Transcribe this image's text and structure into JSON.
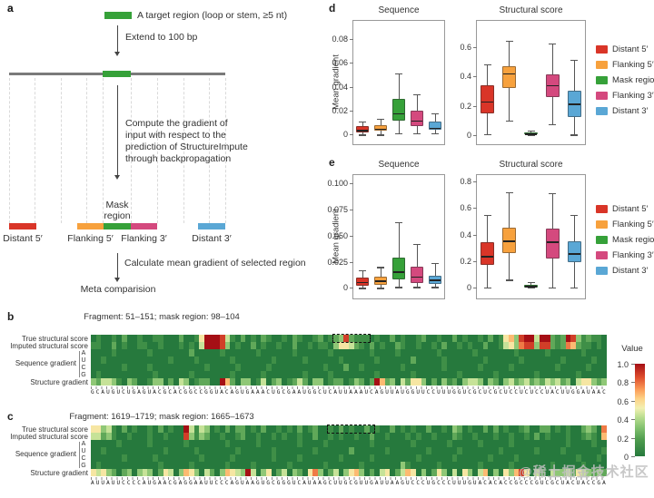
{
  "colors": {
    "distant5": "#d93528",
    "flanking5": "#f7a13d",
    "mask": "#36a139",
    "flanking3": "#d4497e",
    "distant3": "#5aa7d5"
  },
  "heat_colormap": {
    "stops": [
      [
        0,
        "#26793d"
      ],
      [
        0.18,
        "#4f9c4e"
      ],
      [
        0.3,
        "#7fbf6d"
      ],
      [
        0.42,
        "#b8dd8f"
      ],
      [
        0.52,
        "#f2f0b2"
      ],
      [
        0.62,
        "#fdd387"
      ],
      [
        0.72,
        "#fb9d59"
      ],
      [
        0.85,
        "#e04f2e"
      ],
      [
        1,
        "#a50f15"
      ]
    ]
  },
  "value_scale": {
    "title": "Value",
    "ticks": [
      "1.0",
      "0.8",
      "0.6",
      "0.4",
      "0.2",
      "0"
    ]
  },
  "legend": {
    "items": [
      {
        "label": "Distant 5′",
        "color_key": "distant5"
      },
      {
        "label": "Flanking 5′",
        "color_key": "flanking5"
      },
      {
        "label": "Mask region",
        "color_key": "mask"
      },
      {
        "label": "Flanking 3′",
        "color_key": "flanking3"
      },
      {
        "label": "Distant 3′",
        "color_key": "distant3"
      }
    ]
  },
  "panel_a": {
    "label": "a",
    "target_region_label": "A target region (loop or stem, ≥5 nt)",
    "extend_label": "Extend to 100 bp",
    "compute_lines": [
      "Compute the gradient of",
      "input with respect to the",
      "prediction of StructureImpute",
      "through backpropagation"
    ],
    "mask_line1": "Mask",
    "mask_line2": "region",
    "region_labels": {
      "distant5": "Distant 5′",
      "flanking5": "Flanking 5′",
      "flanking3": "Flanking 3′",
      "distant3": "Distant 3′"
    },
    "calculate_label": "Calculate mean gradient of selected region",
    "meta_label": "Meta comparision"
  },
  "panel_labels": {
    "b": "b",
    "c": "c",
    "d": "d",
    "e": "e"
  },
  "watermark": "@稀土掘金技术社区",
  "chart_data": [
    {
      "id": "d-seq",
      "type": "box",
      "title": "Sequence",
      "ylabel": "Mean gradient",
      "ylim": [
        -0.008,
        0.095
      ],
      "yticks": [
        {
          "v": 0,
          "label": "0"
        },
        {
          "v": 0.02,
          "label": "0.02"
        },
        {
          "v": 0.04,
          "label": "0.04"
        },
        {
          "v": 0.06,
          "label": "0.06"
        },
        {
          "v": 0.08,
          "label": "0.08"
        }
      ],
      "series": [
        {
          "name": "Distant 5′",
          "color_key": "distant5",
          "lo": 0.0,
          "q1": 0.002,
          "med": 0.004,
          "q3": 0.007,
          "hi": 0.011
        },
        {
          "name": "Flanking 5′",
          "color_key": "flanking5",
          "lo": 0.0,
          "q1": 0.003,
          "med": 0.005,
          "q3": 0.008,
          "hi": 0.013
        },
        {
          "name": "Mask region",
          "color_key": "mask",
          "lo": 0.001,
          "q1": 0.012,
          "med": 0.018,
          "q3": 0.03,
          "hi": 0.051
        },
        {
          "name": "Flanking 3′",
          "color_key": "flanking3",
          "lo": 0.001,
          "q1": 0.007,
          "med": 0.012,
          "q3": 0.02,
          "hi": 0.034
        },
        {
          "name": "Distant 3′",
          "color_key": "distant3",
          "lo": 0.001,
          "q1": 0.004,
          "med": 0.006,
          "q3": 0.011,
          "hi": 0.018
        }
      ]
    },
    {
      "id": "d-str",
      "type": "box",
      "title": "Structural score",
      "ylabel": "",
      "ylim": [
        -0.06,
        0.775
      ],
      "yticks": [
        {
          "v": 0,
          "label": "0"
        },
        {
          "v": 0.2,
          "label": "0.2"
        },
        {
          "v": 0.4,
          "label": "0.4"
        },
        {
          "v": 0.6,
          "label": "0.6"
        }
      ],
      "series": [
        {
          "name": "Distant 5′",
          "color_key": "distant5",
          "lo": 0.01,
          "q1": 0.15,
          "med": 0.23,
          "q3": 0.34,
          "hi": 0.48
        },
        {
          "name": "Flanking 5′",
          "color_key": "flanking5",
          "lo": 0.1,
          "q1": 0.32,
          "med": 0.42,
          "q3": 0.47,
          "hi": 0.64
        },
        {
          "name": "Mask region",
          "color_key": "mask",
          "lo": 0.001,
          "q1": 0.005,
          "med": 0.012,
          "q3": 0.02,
          "hi": 0.035
        },
        {
          "name": "Flanking 3′",
          "color_key": "flanking3",
          "lo": 0.075,
          "q1": 0.26,
          "med": 0.34,
          "q3": 0.41,
          "hi": 0.62
        },
        {
          "name": "Distant 3′",
          "color_key": "distant3",
          "lo": 0.005,
          "q1": 0.125,
          "med": 0.215,
          "q3": 0.3,
          "hi": 0.51
        }
      ]
    },
    {
      "id": "e-seq",
      "type": "box",
      "title": "Sequence",
      "ylabel": "Mean gradient",
      "ylim": [
        -0.01,
        0.108
      ],
      "yticks": [
        {
          "v": 0,
          "label": "0"
        },
        {
          "v": 0.025,
          "label": "0.025"
        },
        {
          "v": 0.05,
          "label": "0.050"
        },
        {
          "v": 0.075,
          "label": "0.075"
        },
        {
          "v": 0.1,
          "label": "0.100"
        }
      ],
      "series": [
        {
          "name": "Distant 5′",
          "color_key": "distant5",
          "lo": 0.0,
          "q1": 0.002,
          "med": 0.006,
          "q3": 0.01,
          "hi": 0.017
        },
        {
          "name": "Flanking 5′",
          "color_key": "flanking5",
          "lo": 0.0,
          "q1": 0.003,
          "med": 0.007,
          "q3": 0.011,
          "hi": 0.02
        },
        {
          "name": "Mask region",
          "color_key": "mask",
          "lo": 0.001,
          "q1": 0.008,
          "med": 0.016,
          "q3": 0.029,
          "hi": 0.063
        },
        {
          "name": "Flanking 3′",
          "color_key": "flanking3",
          "lo": 0.001,
          "q1": 0.005,
          "med": 0.011,
          "q3": 0.02,
          "hi": 0.042
        },
        {
          "name": "Distant 3′",
          "color_key": "distant3",
          "lo": 0.001,
          "q1": 0.004,
          "med": 0.008,
          "q3": 0.012,
          "hi": 0.024
        }
      ]
    },
    {
      "id": "e-str",
      "type": "box",
      "title": "Structural score",
      "ylabel": "",
      "ylim": [
        -0.08,
        0.848
      ],
      "yticks": [
        {
          "v": 0,
          "label": "0"
        },
        {
          "v": 0.2,
          "label": "0.2"
        },
        {
          "v": 0.4,
          "label": "0.4"
        },
        {
          "v": 0.6,
          "label": "0.6"
        },
        {
          "v": 0.8,
          "label": "0.8"
        }
      ],
      "series": [
        {
          "name": "Distant 5′",
          "color_key": "distant5",
          "lo": 0.005,
          "q1": 0.17,
          "med": 0.24,
          "q3": 0.34,
          "hi": 0.55
        },
        {
          "name": "Flanking 5′",
          "color_key": "flanking5",
          "lo": 0.06,
          "q1": 0.26,
          "med": 0.355,
          "q3": 0.455,
          "hi": 0.72
        },
        {
          "name": "Mask region",
          "color_key": "mask",
          "lo": 0.0,
          "q1": 0.005,
          "med": 0.013,
          "q3": 0.025,
          "hi": 0.045
        },
        {
          "name": "Flanking 3′",
          "color_key": "flanking3",
          "lo": 0.005,
          "q1": 0.22,
          "med": 0.35,
          "q3": 0.445,
          "hi": 0.71
        },
        {
          "name": "Distant 3′",
          "color_key": "distant3",
          "lo": 0.005,
          "q1": 0.19,
          "med": 0.26,
          "q3": 0.35,
          "hi": 0.55
        }
      ]
    },
    {
      "id": "b-heat",
      "type": "heatmap",
      "title": "Fragment: 51–151; mask region: 98–104",
      "row_labels": [
        "True structural score",
        "Imputed structural score",
        "Sequence gradient",
        "Structure gradient"
      ],
      "nucleotide_labels": [
        "A",
        "U",
        "C",
        "G"
      ],
      "mask_cols": [
        47,
        53
      ],
      "rows": [
        "0100102001001100020015999841020102100102100120123821110100201001200100201001020156389949921298312110",
        "1100201001100100010104999830100201001002001011035542102010021001001020010100200145378838821276211010",
        "0000100000010000000200000100000010000001000000100000001000010000000100000010000000100000100000010000",
        "0010000000000001000010000001000000010000010000001000000100000020000010000000100000010000000100000100",
        "0000001000010000000000100000100000100000000001000200100000001000000010000001000001000000001000001000",
        "0100000000001000000100000001000001000000010000100000000100000010000000010000001000000010000000100000",
        "3244310320013302043012200962033014023012420330122013202962304255302031203443032034234232434230455323"
      ],
      "sequence": "GCAUGUCUGAGUACGCACGGCCGGUACAGUGAAACUGCGAAUGGCUCAUUAAAUCAGUUAUGGUUCCUUUGGUCGCUCGCUCCUCUCCUACUUGGAUAAC"
    },
    {
      "id": "c-heat",
      "type": "heatmap",
      "title": "Fragment: 1619–1719; mask region: 1665–1673",
      "row_labels": [
        "True structural score",
        "Imputed structural score",
        "Sequence gradient",
        "Structure gradient"
      ],
      "nucleotide_labels": [
        "A",
        "U",
        "C",
        "G"
      ],
      "mask_cols": [
        46,
        54
      ],
      "rows": [
        "5534102010010201009414301020220102001010201200102010020100201010020010320100202010012002201010023207",
        "4423100100010010008313200100120010010100100200101001002001000101001000210010001001001020100010012106",
        "0000010000010000001000000010000010000000100001000000001000000010000001000001000001000000000010000100",
        "0010000000000010000010000000100000010000000100000020000001000000010000010000000100000010000100000001",
        "0000001000001000000001000001000000010000100000001000001000000001000000100000010000100000000000100010",
        "0100000000000100000100000010000100000010000001000000100000003100000100000001000001000000010000010000",
        "5453202303430254036530420365439403502403205730240356302045024650302530405304603053685042043342543232"
      ],
      "sequence": "AUUAUUCCCCAUGAACGAGGAAUUCCCAGUAAGUGCGGGUCAUAAGCUUGCGUUGAUUAAGUCCCUGCCCUUUGUACACACCGCCCGUCGCUACUACCGA"
    }
  ]
}
